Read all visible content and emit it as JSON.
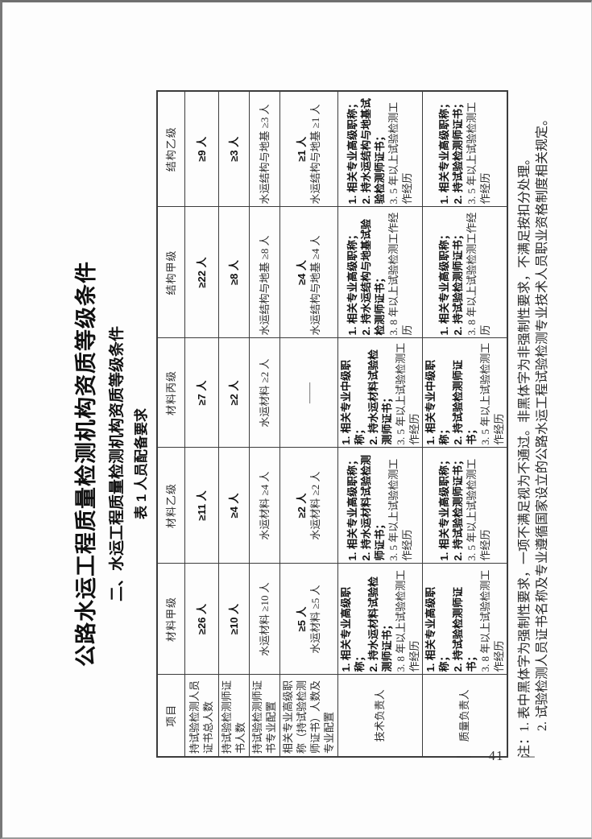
{
  "page": {
    "main_title": "公路水运工程质量检测机构资质等级条件",
    "section_title": "二、水运工程质量检测机构资质等级条件",
    "table_caption": "表 1  人员配备要求",
    "page_number": "— 41 —",
    "notes": [
      "注：1. 表中黑体字为强制性要求，一项不满足视为不通过。非黑体字为非强制性要求，不满足按扣分处理。",
      "2. 试验检测人员证书名称及专业遵循国家设立的公路水运工程试验检测专业技术人员职业资格制度相关规定。"
    ]
  },
  "table": {
    "header": [
      "项目",
      "材料甲级",
      "材料乙级",
      "材料丙级",
      "结构甲级",
      "结构乙级"
    ],
    "rows": [
      {
        "label": "持试验检测人员证书总人数",
        "cells": [
          [
            {
              "t": "≥26 人",
              "b": true
            }
          ],
          [
            {
              "t": "≥11 人",
              "b": true
            }
          ],
          [
            {
              "t": "≥7 人",
              "b": true
            }
          ],
          [
            {
              "t": "≥22 人",
              "b": true
            }
          ],
          [
            {
              "t": "≥9 人",
              "b": true
            }
          ]
        ]
      },
      {
        "label": "持试验检测师证书人数",
        "cells": [
          [
            {
              "t": "≥10 人",
              "b": true
            }
          ],
          [
            {
              "t": "≥4 人",
              "b": true
            }
          ],
          [
            {
              "t": "≥2 人",
              "b": true
            }
          ],
          [
            {
              "t": "≥8 人",
              "b": true
            }
          ],
          [
            {
              "t": "≥3 人",
              "b": true
            }
          ]
        ]
      },
      {
        "label": "持试验检测师证书专业配置",
        "cells": [
          [
            {
              "t": "水运材料 ≥10 人",
              "b": false
            }
          ],
          [
            {
              "t": "水运材料 ≥4 人",
              "b": false
            }
          ],
          [
            {
              "t": "水运材料 ≥2 人",
              "b": false
            }
          ],
          [
            {
              "t": "水运结构与地基 ≥8 人",
              "b": false
            }
          ],
          [
            {
              "t": "水运结构与地基 ≥3 人",
              "b": false
            }
          ]
        ]
      },
      {
        "label": "相关专业高级职称（持试验检测师证书）人数及专业配置",
        "cells": [
          [
            {
              "t": "≥5 人",
              "b": true
            },
            {
              "t": "水运材料 ≥5 人",
              "b": false
            }
          ],
          [
            {
              "t": "≥2 人",
              "b": true
            },
            {
              "t": "水运材料 ≥2 人",
              "b": false
            }
          ],
          [
            {
              "t": "——",
              "b": false
            }
          ],
          [
            {
              "t": "≥4 人",
              "b": true
            },
            {
              "t": "水运结构与地基 ≥4 人",
              "b": false
            }
          ],
          [
            {
              "t": "≥1 人",
              "b": true
            },
            {
              "t": "水运结构与地基 ≥1 人",
              "b": false
            }
          ]
        ]
      },
      {
        "label": "技术负责人",
        "cells": [
          [
            {
              "t": "1. 相关专业高级职称；",
              "b": true
            },
            {
              "t": "2. 持水运材料试验检测师证书；",
              "b": true
            },
            {
              "t": "3. 8 年以上试验检测工作经历",
              "b": false
            }
          ],
          [
            {
              "t": "1. 相关专业高级职称；",
              "b": true
            },
            {
              "t": "2. 持水运材料试验检测师证书；",
              "b": true
            },
            {
              "t": "3. 5 年以上试验检测工作经历",
              "b": false
            }
          ],
          [
            {
              "t": "1. 相关专业中级职称；",
              "b": true
            },
            {
              "t": "2. 持水运材料试验检测师证书；",
              "b": true
            },
            {
              "t": "3. 5 年以上试验检测工作经历",
              "b": false
            }
          ],
          [
            {
              "t": "1. 相关专业高级职称；",
              "b": true
            },
            {
              "t": "2. 持水运结构与地基试验检测师证书；",
              "b": true
            },
            {
              "t": "3. 8 年以上试验检测工作经历",
              "b": false
            }
          ],
          [
            {
              "t": "1. 相关专业高级职称；",
              "b": true
            },
            {
              "t": "2. 持水运结构与地基试验检测师证书；",
              "b": true
            },
            {
              "t": "3. 5 年以上试验检测工作经历",
              "b": false
            }
          ]
        ]
      },
      {
        "label": "质量负责人",
        "cells": [
          [
            {
              "t": "1. 相关专业高级职称；",
              "b": true
            },
            {
              "t": "2. 持试验检测师证书；",
              "b": true
            },
            {
              "t": "3. 8 年以上试验检测工作经历",
              "b": false
            }
          ],
          [
            {
              "t": "1. 相关专业高级职称；",
              "b": true
            },
            {
              "t": "2. 持试验检测师证书；",
              "b": true
            },
            {
              "t": "3. 5 年以上试验检测工作经历",
              "b": false
            }
          ],
          [
            {
              "t": "1. 相关专业中级职称；",
              "b": true
            },
            {
              "t": "2. 持试验检测师证书；",
              "b": true
            },
            {
              "t": "3. 5 年以上试验检测工作经历",
              "b": false
            }
          ],
          [
            {
              "t": "1. 相关专业高级职称；",
              "b": true
            },
            {
              "t": "2. 持试验检测师证书；",
              "b": true
            },
            {
              "t": "3. 8 年以上试验检测工作经历",
              "b": false
            }
          ],
          [
            {
              "t": "1. 相关专业高级职称；",
              "b": true
            },
            {
              "t": "2. 持试验检测师证书；",
              "b": true
            },
            {
              "t": "3. 5 年以上试验检测工作经历",
              "b": false
            }
          ]
        ]
      }
    ]
  }
}
